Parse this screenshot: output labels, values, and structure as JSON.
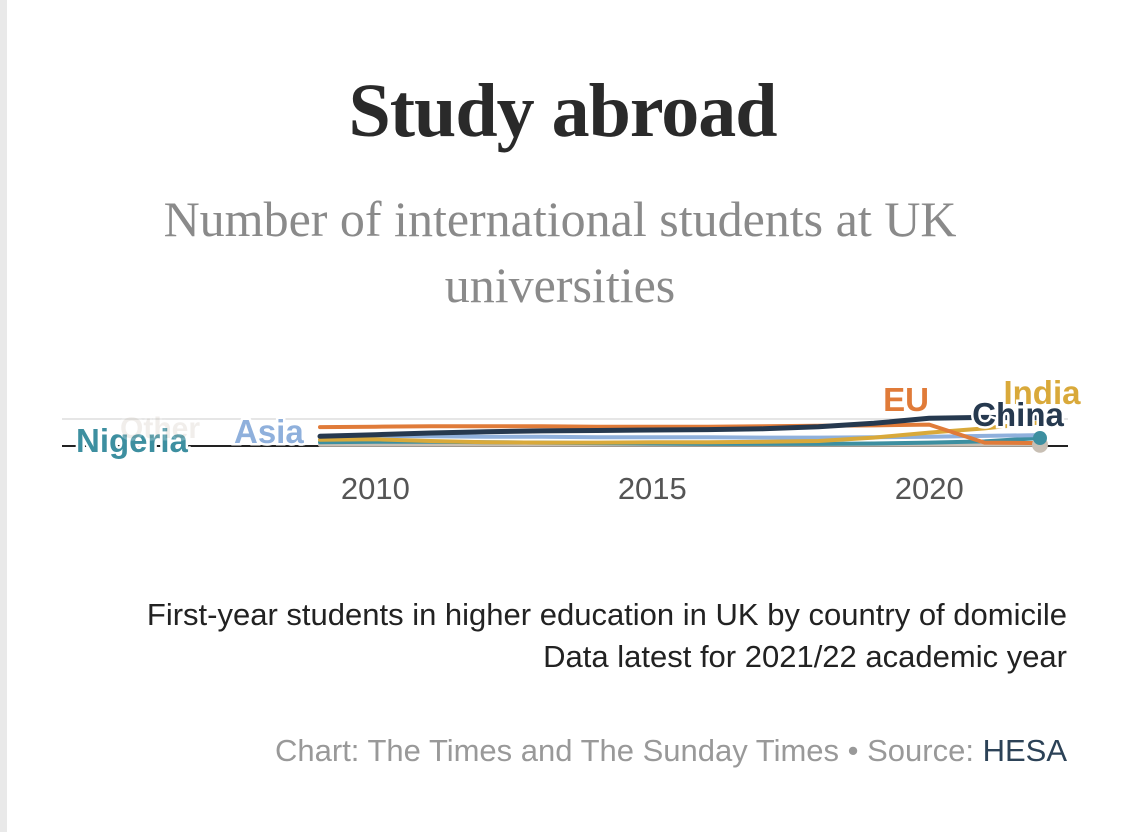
{
  "title": "Study abroad",
  "subtitle": "Number of international students at UK universities",
  "footer": {
    "description": "First-year students in higher education in UK by country of domicile",
    "data_note": "Data latest for 2021/22 academic year",
    "credit": "Chart: The Times and The Sunday Times",
    "separator": " • ",
    "source_label": "Source: ",
    "source_name": "HESA"
  },
  "chart_data": {
    "type": "line",
    "x": [
      2009,
      2010,
      2011,
      2012,
      2013,
      2014,
      2015,
      2016,
      2017,
      2018,
      2019,
      2020,
      2021,
      2022
    ],
    "xticks": [
      "2010",
      "2015",
      "2020"
    ],
    "series": [
      {
        "name": "EU",
        "color": "#e07b39",
        "values": [
          4.5,
          4.6,
          4.7,
          4.7,
          4.7,
          4.6,
          4.6,
          4.6,
          4.7,
          4.8,
          4.9,
          5.1,
          0.8,
          0.7
        ]
      },
      {
        "name": "India",
        "color": "#d9a93a",
        "values": [
          1.5,
          1.6,
          1.2,
          0.9,
          0.8,
          0.8,
          0.9,
          0.9,
          1.0,
          1.2,
          2.0,
          3.2,
          4.2,
          5.6
        ]
      },
      {
        "name": "China",
        "color": "#26394f",
        "values": [
          2.3,
          2.7,
          3.1,
          3.4,
          3.6,
          3.7,
          3.8,
          3.9,
          4.1,
          4.6,
          5.4,
          6.6,
          6.8,
          6.7
        ]
      },
      {
        "name": "Asia",
        "color": "#8fb0dc",
        "values": [
          2.4,
          2.4,
          2.3,
          2.2,
          2.2,
          2.1,
          2.1,
          2.1,
          2.0,
          2.0,
          2.1,
          2.2,
          2.4,
          2.6
        ]
      },
      {
        "name": "Nigeria",
        "color": "#3d8fa0",
        "values": [
          0.9,
          1.0,
          1.0,
          0.9,
          0.8,
          0.7,
          0.6,
          0.5,
          0.5,
          0.5,
          0.6,
          0.8,
          1.1,
          1.9
        ]
      },
      {
        "name": "Other",
        "color": "#c8bfb4",
        "values": [
          0.3,
          0.3,
          0.3,
          0.3,
          0.3,
          0.3,
          0.3,
          0.3,
          0.3,
          0.3,
          0.3,
          0.3,
          0.3,
          0.3
        ]
      }
    ]
  }
}
